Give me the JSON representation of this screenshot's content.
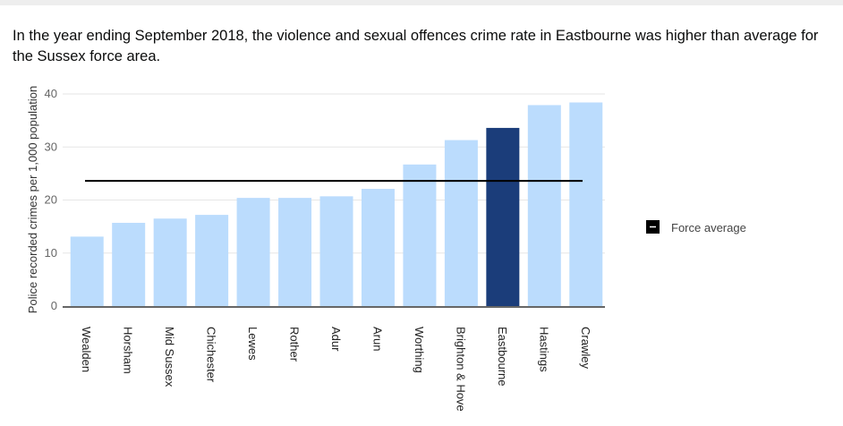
{
  "title": "In the year ending September 2018, the violence and sexual offences crime rate in Eastbourne was higher than average for the Sussex force area.",
  "chart_data": {
    "type": "bar",
    "title": "In the year ending September 2018, the violence and sexual offences crime rate in Eastbourne was higher than average for the Sussex force area.",
    "xlabel": "",
    "ylabel": "Police recorded crimes per 1,000 population",
    "ylim": [
      0,
      40
    ],
    "yticks": [
      0,
      10,
      20,
      30,
      40
    ],
    "grid": true,
    "categories": [
      "Wealden",
      "Horsham",
      "Mid Sussex",
      "Chichester",
      "Lewes",
      "Rother",
      "Adur",
      "Arun",
      "Worthing",
      "Brighton & Hove",
      "Eastbourne",
      "Hastings",
      "Crawley"
    ],
    "values": [
      13.1,
      15.7,
      16.5,
      17.2,
      20.4,
      20.4,
      20.7,
      22.1,
      26.7,
      31.3,
      33.6,
      37.9,
      38.4
    ],
    "highlight": "Eastbourne",
    "reference_line": {
      "name": "Force average",
      "value": 23.6
    },
    "legend": {
      "entries": [
        "Force average"
      ],
      "placement": "right"
    },
    "colors": {
      "bar": "#bbdcfd",
      "highlight": "#1b3d7a",
      "average": "#000000",
      "grid": "#e6e6e6",
      "axis": "#666666"
    }
  }
}
